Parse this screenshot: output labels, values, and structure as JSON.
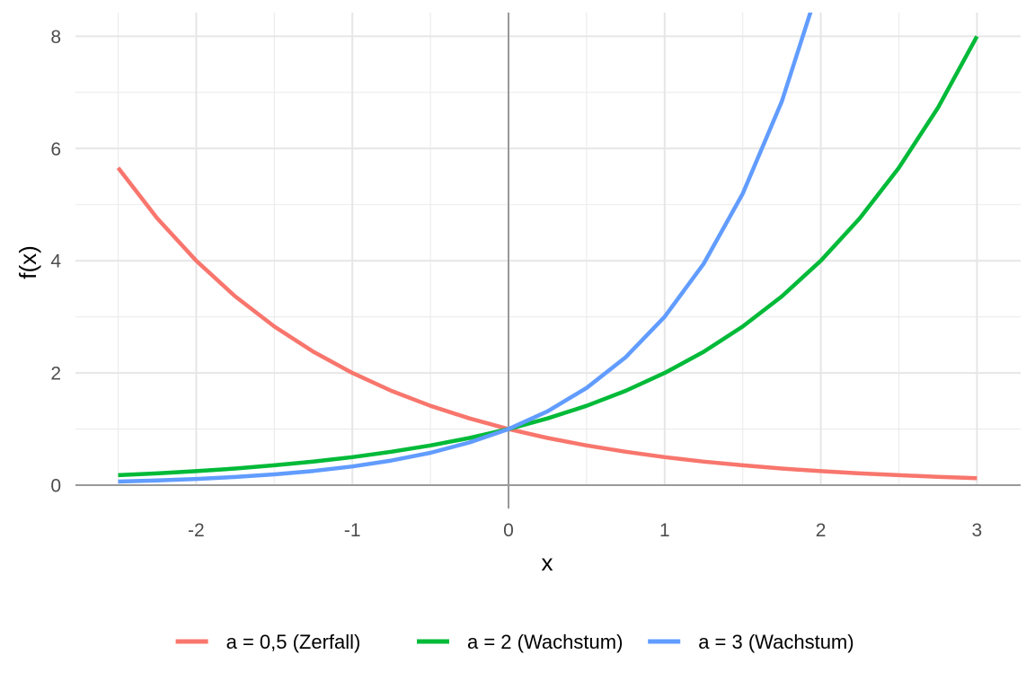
{
  "chart_data": {
    "type": "line",
    "title": "",
    "xlabel": "x",
    "ylabel": "f(x)",
    "xlim": [
      -2.5,
      3
    ],
    "ylim": [
      0,
      8
    ],
    "x_ticks": [
      -2,
      -1,
      0,
      1,
      2,
      3
    ],
    "x_tick_labels": [
      "-2",
      "-1",
      "0",
      "1",
      "2",
      "3"
    ],
    "y_ticks": [
      0,
      2,
      4,
      6,
      8
    ],
    "y_tick_labels": [
      "0",
      "2",
      "4",
      "6",
      "8"
    ],
    "grid": true,
    "legend_position": "bottom",
    "series": [
      {
        "name": "a = 0,5 (Zerfall)",
        "color": "#F8766D",
        "x": [
          -2.5,
          -2.25,
          -2,
          -1.75,
          -1.5,
          -1.25,
          -1,
          -0.75,
          -0.5,
          -0.25,
          0,
          0.25,
          0.5,
          0.75,
          1,
          1.25,
          1.5,
          1.75,
          2,
          2.25,
          2.5,
          2.75,
          3
        ],
        "y": [
          5.657,
          4.757,
          4.0,
          3.364,
          2.828,
          2.378,
          2.0,
          1.682,
          1.414,
          1.189,
          1.0,
          0.841,
          0.707,
          0.595,
          0.5,
          0.42,
          0.354,
          0.297,
          0.25,
          0.21,
          0.177,
          0.149,
          0.125
        ]
      },
      {
        "name": "a = 2 (Wachstum)",
        "color": "#00BA38",
        "x": [
          -2.5,
          -2.25,
          -2,
          -1.75,
          -1.5,
          -1.25,
          -1,
          -0.75,
          -0.5,
          -0.25,
          0,
          0.25,
          0.5,
          0.75,
          1,
          1.25,
          1.5,
          1.75,
          2,
          2.25,
          2.5,
          2.75,
          3
        ],
        "y": [
          0.177,
          0.21,
          0.25,
          0.297,
          0.354,
          0.42,
          0.5,
          0.595,
          0.707,
          0.841,
          1.0,
          1.189,
          1.414,
          1.682,
          2.0,
          2.378,
          2.828,
          3.364,
          4.0,
          4.757,
          5.657,
          6.727,
          8.0
        ]
      },
      {
        "name": "a = 3 (Wachstum)",
        "color": "#619CFF",
        "x": [
          -2.5,
          -2.25,
          -2,
          -1.75,
          -1.5,
          -1.25,
          -1,
          -0.75,
          -0.5,
          -0.25,
          0,
          0.25,
          0.5,
          0.75,
          1,
          1.25,
          1.5,
          1.75,
          2
        ],
        "y": [
          0.064,
          0.084,
          0.111,
          0.146,
          0.192,
          0.253,
          0.333,
          0.439,
          0.577,
          0.76,
          1.0,
          1.316,
          1.732,
          2.28,
          3.0,
          3.948,
          5.196,
          6.839,
          9.0
        ]
      }
    ]
  }
}
